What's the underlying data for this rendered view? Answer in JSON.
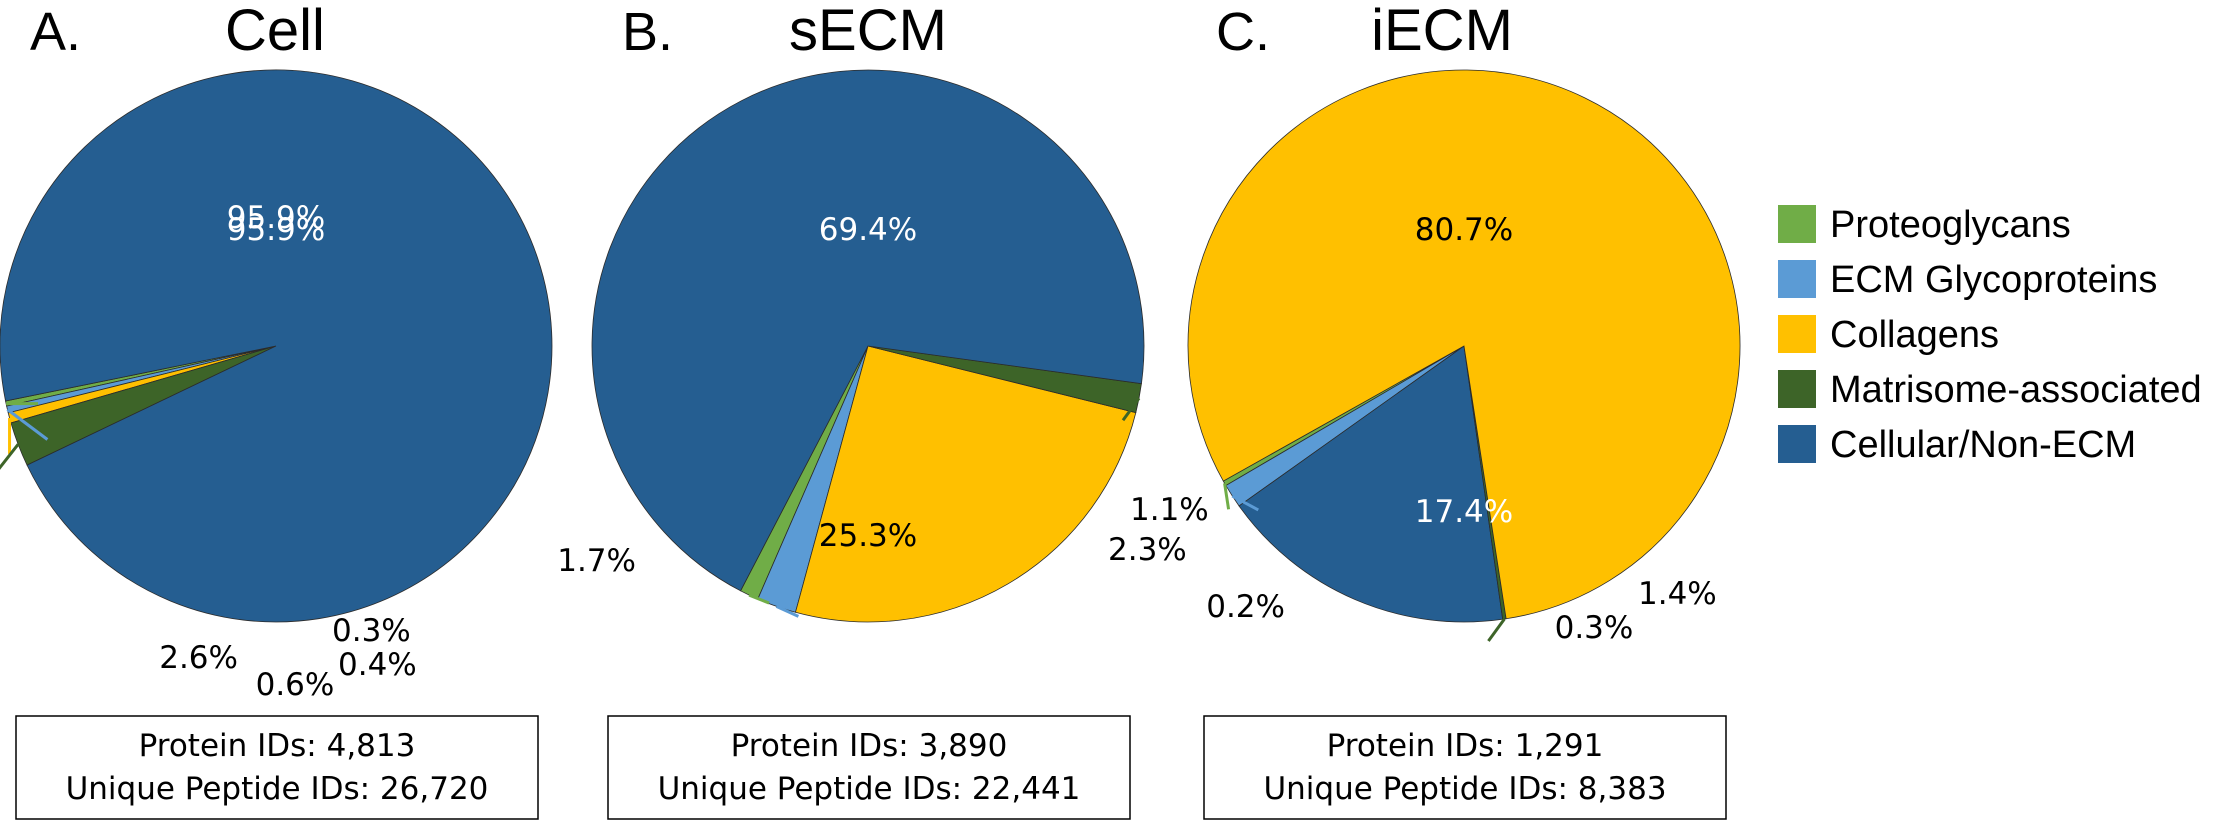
{
  "colors": {
    "Proteoglycans": "#70ad47",
    "ECM Glycoproteins": "#5b9bd5",
    "Collagens": "#ffc000",
    "Matrisome-associated": "#3d6428",
    "Cellular/Non-ECM": "#255e91"
  },
  "legend": {
    "entries": [
      "Proteoglycans",
      "ECM Glycoproteins",
      "Collagens",
      "Matrisome-associated",
      "Cellular/Non-ECM"
    ]
  },
  "chart_data": [
    {
      "type": "pie",
      "letter": "A.",
      "title": "Cell",
      "categories": [
        "Proteoglycans",
        "ECM Glycoproteins",
        "Collagens",
        "Matrisome-associated",
        "Cellular/Non-ECM"
      ],
      "values": [
        0.3,
        0.4,
        0.6,
        2.6,
        95.9
      ],
      "labels": [
        "0.3%",
        "0.4%",
        "0.6%",
        "2.6%",
        "95.9%"
      ],
      "info": [
        "Protein IDs: 4,813",
        "Unique Peptide IDs: 26,720"
      ]
    },
    {
      "type": "pie",
      "letter": "B.",
      "title": "sECM",
      "categories": [
        "Proteoglycans",
        "ECM Glycoproteins",
        "Collagens",
        "Matrisome-associated",
        "Cellular/Non-ECM"
      ],
      "values": [
        1.1,
        2.3,
        25.3,
        1.7,
        69.4
      ],
      "labels": [
        "1.1%",
        "2.3%",
        "25.3%",
        "1.7%",
        "69.4%"
      ],
      "info": [
        "Protein IDs: 3,890",
        "Unique Peptide IDs: 22,441"
      ]
    },
    {
      "type": "pie",
      "letter": "C.",
      "title": "iECM",
      "categories": [
        "Proteoglycans",
        "ECM Glycoproteins",
        "Cellular/Non-ECM",
        "Matrisome-associated",
        "Collagens"
      ],
      "values": [
        0.3,
        1.4,
        17.4,
        0.2,
        80.7
      ],
      "labels": [
        "0.3%",
        "1.4%",
        "17.4%",
        "0.2%",
        "80.7%"
      ],
      "info": [
        "Protein IDs: 1,291",
        "Unique Peptide IDs: 8,383"
      ]
    }
  ]
}
